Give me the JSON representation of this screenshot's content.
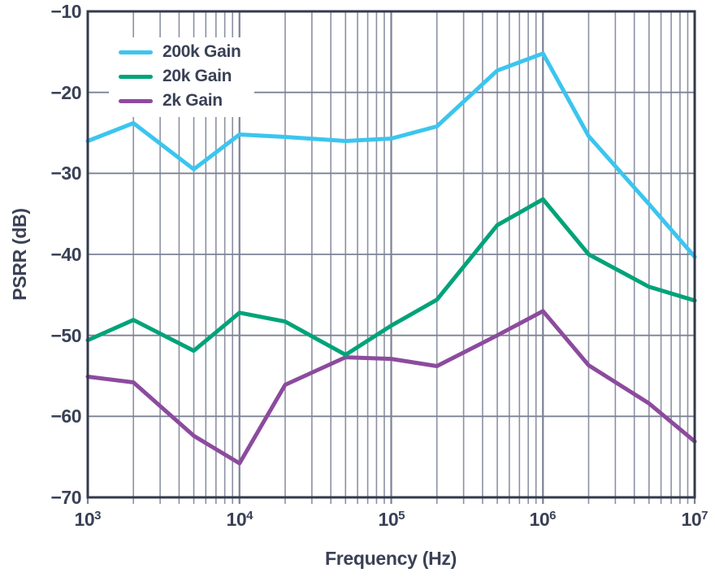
{
  "chart_data": {
    "type": "line",
    "title": "",
    "xlabel": "Frequency (Hz)",
    "ylabel": "PSRR (dB)",
    "x_scale": "log",
    "xlim": [
      1000,
      10000000
    ],
    "ylim": [
      -70,
      -10
    ],
    "grid": true,
    "legend_position": "top-left-inside",
    "y_ticks": [
      "−10",
      "−20",
      "−30",
      "−40",
      "−50",
      "−60",
      "−70"
    ],
    "y_tick_values": [
      -10,
      -20,
      -30,
      -40,
      -50,
      -60,
      -70
    ],
    "x_tick_base": "10",
    "x_tick_exponents": [
      "3",
      "4",
      "5",
      "6",
      "7"
    ],
    "x_tick_values": [
      1000,
      10000,
      100000,
      1000000,
      10000000
    ],
    "x": [
      1000,
      2000,
      5000,
      10000,
      20000,
      50000,
      100000,
      200000,
      500000,
      1000000,
      2000000,
      5000000,
      10000000
    ],
    "series": [
      {
        "name": "200k Gain",
        "color": "#3BC5EF",
        "values": [
          -26.0,
          -23.8,
          -29.5,
          -25.2,
          -25.5,
          -26.0,
          -25.7,
          -24.2,
          -17.3,
          -15.2,
          -25.4,
          -33.8,
          -40.3
        ]
      },
      {
        "name": "20k Gain",
        "color": "#00A379",
        "values": [
          -50.6,
          -48.1,
          -51.9,
          -47.2,
          -48.3,
          -52.4,
          -48.8,
          -45.6,
          -36.4,
          -33.2,
          -40.0,
          -44.0,
          -45.7
        ]
      },
      {
        "name": "2k Gain",
        "color": "#8C4B9E",
        "values": [
          -55.1,
          -55.8,
          -62.4,
          -65.8,
          -56.1,
          -52.7,
          -52.9,
          -53.8,
          -50.0,
          -47.0,
          -53.7,
          -58.4,
          -63.1
        ]
      }
    ]
  },
  "style_colors": {
    "text": "#3A4156",
    "grid_minor": "#8C91A3",
    "grid_major": "#7C8295",
    "frame": "#333A4E",
    "background": "#FFFFFF"
  }
}
